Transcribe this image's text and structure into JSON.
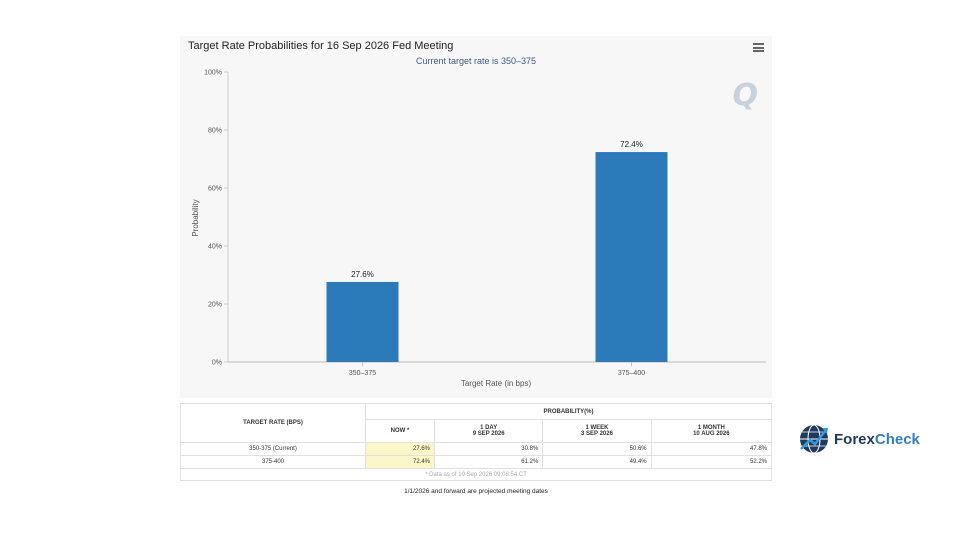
{
  "chart_data": {
    "type": "bar",
    "title": "Target Rate Probabilities for 16 Sep 2026 Fed Meeting",
    "subtitle": "Current target rate is 350–375",
    "categories": [
      "350–375",
      "375–400"
    ],
    "values": [
      27.6,
      72.4
    ],
    "data_labels": [
      "27.6%",
      "72.4%"
    ],
    "xlabel": "Target Rate (in bps)",
    "ylabel": "Probability",
    "ylim": [
      0,
      100
    ],
    "yticks": [
      "0%",
      "20%",
      "40%",
      "60%",
      "80%",
      "100%"
    ],
    "bar_color": "#2b7bba",
    "grid": false
  },
  "table": {
    "col_target": "TARGET RATE (BPS)",
    "col_prob": "PROBABILITY(%)",
    "sub_now": "NOW *",
    "sub_1day": [
      "1 DAY",
      "9 SEP 2026"
    ],
    "sub_1week": [
      "1 WEEK",
      "3 SEP 2026"
    ],
    "sub_1month": [
      "1 MONTH",
      "10 AUG 2026"
    ],
    "rows": [
      {
        "rate": "350-375 (Current)",
        "now": "27.6%",
        "day": "30.8%",
        "week": "50.6%",
        "month": "47.8%"
      },
      {
        "rate": "375-400",
        "now": "72.4%",
        "day": "61.2%",
        "week": "49.4%",
        "month": "52.2%"
      }
    ],
    "footnote": "* Data as of 10 Sep 2026 09:08:54 CT"
  },
  "projected_note": "1/1/2026 and forward are projected meeting dates",
  "watermark": "Q",
  "logo": {
    "part1": "Forex",
    "part2": "Check"
  }
}
